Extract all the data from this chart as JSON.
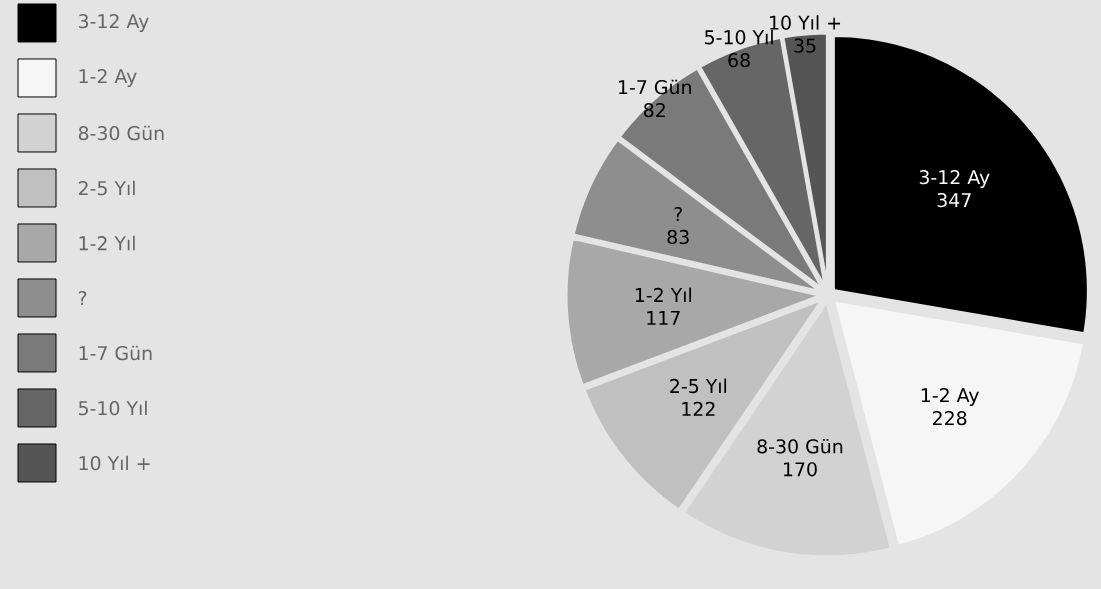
{
  "chart_data": {
    "type": "pie",
    "legend": "left",
    "data_labels": true,
    "categories": [
      "3-12 Ay",
      "1-2 Ay",
      "8-30 Gün",
      "2-5 Yıl",
      "1-2 Yıl",
      "?",
      "1-7 Gün",
      "5-10 Yıl",
      "10 Yıl +"
    ],
    "values": [
      347,
      228,
      170,
      122,
      117,
      83,
      82,
      68,
      35
    ],
    "colors": [
      "#000000",
      "#f6f6f6",
      "#d2d2d2",
      "#c0c0c0",
      "#a8a8a8",
      "#8e8e8e",
      "#7a7a7a",
      "#666666",
      "#555555"
    ]
  }
}
